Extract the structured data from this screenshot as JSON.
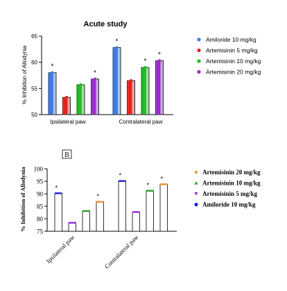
{
  "chart_data": [
    {
      "type": "bar",
      "title": "Acute study",
      "ylabel": "% Inhibition of Allodynia",
      "xlabel": "",
      "ylim": [
        50,
        65
      ],
      "yticks": [
        "50",
        "55",
        "60",
        "65"
      ],
      "categories": [
        "Ipsilateral paw",
        "Contralateral paw"
      ],
      "series": [
        {
          "name": "Amiloride 10 mg/kg",
          "values": [
            58.0,
            62.8
          ],
          "color": "#3d7bea",
          "marker": "circle",
          "significant": [
            true,
            true
          ]
        },
        {
          "name": "Artemisinin 5 mg/kg",
          "values": [
            53.3,
            56.5
          ],
          "color": "#e8201c",
          "marker": "circle",
          "significant": [
            false,
            false
          ]
        },
        {
          "name": "Artemisinin 10 mg/kg",
          "values": [
            55.7,
            59.0
          ],
          "color": "#1fbf1f",
          "marker": "circle",
          "significant": [
            false,
            true
          ]
        },
        {
          "name": "Artemisinin 20 mg/kg",
          "values": [
            56.8,
            60.3
          ],
          "color": "#9b2ad0",
          "marker": "circle",
          "significant": [
            true,
            true
          ]
        }
      ],
      "significance_mark": "*",
      "legend_position": "right"
    },
    {
      "type": "bar",
      "panel_label": "B",
      "title": "",
      "ylabel": "% Inhibition of Allodynia",
      "xlabel": "",
      "ylim": [
        75,
        100
      ],
      "yticks": [
        "75",
        "80",
        "85",
        "90",
        "95",
        "100"
      ],
      "categories": [
        "Ipsilateral paw",
        "Contralateral paw"
      ],
      "series": [
        {
          "name": "Amiloride 10 mg/kg",
          "values": [
            90.2,
            95.1
          ],
          "color": "#2020d8",
          "marker": "circle",
          "significant": [
            true,
            true
          ]
        },
        {
          "name": "Artemisinin 5 mg/kg",
          "values": [
            78.4,
            82.7
          ],
          "color": "#8a2be2",
          "marker": "triangle-down",
          "significant": [
            false,
            false
          ]
        },
        {
          "name": "Artemisinin 10 mg/kg",
          "values": [
            83.1,
            91.2
          ],
          "color": "#1fa61f",
          "marker": "triangle-up",
          "significant": [
            false,
            true
          ]
        },
        {
          "name": "Artemisinin 20 mg/kg",
          "values": [
            86.8,
            93.8
          ],
          "color": "#f0902a",
          "marker": "diamond",
          "significant": [
            true,
            true
          ]
        }
      ],
      "legend_order": [
        "Artemisinin 20 mg/kg",
        "Artemisinin 10 mg/kg",
        "Artemisinin 5 mg/kg",
        "Amiloride 10 mg/kg"
      ],
      "significance_mark": "*",
      "legend_position": "right"
    }
  ]
}
